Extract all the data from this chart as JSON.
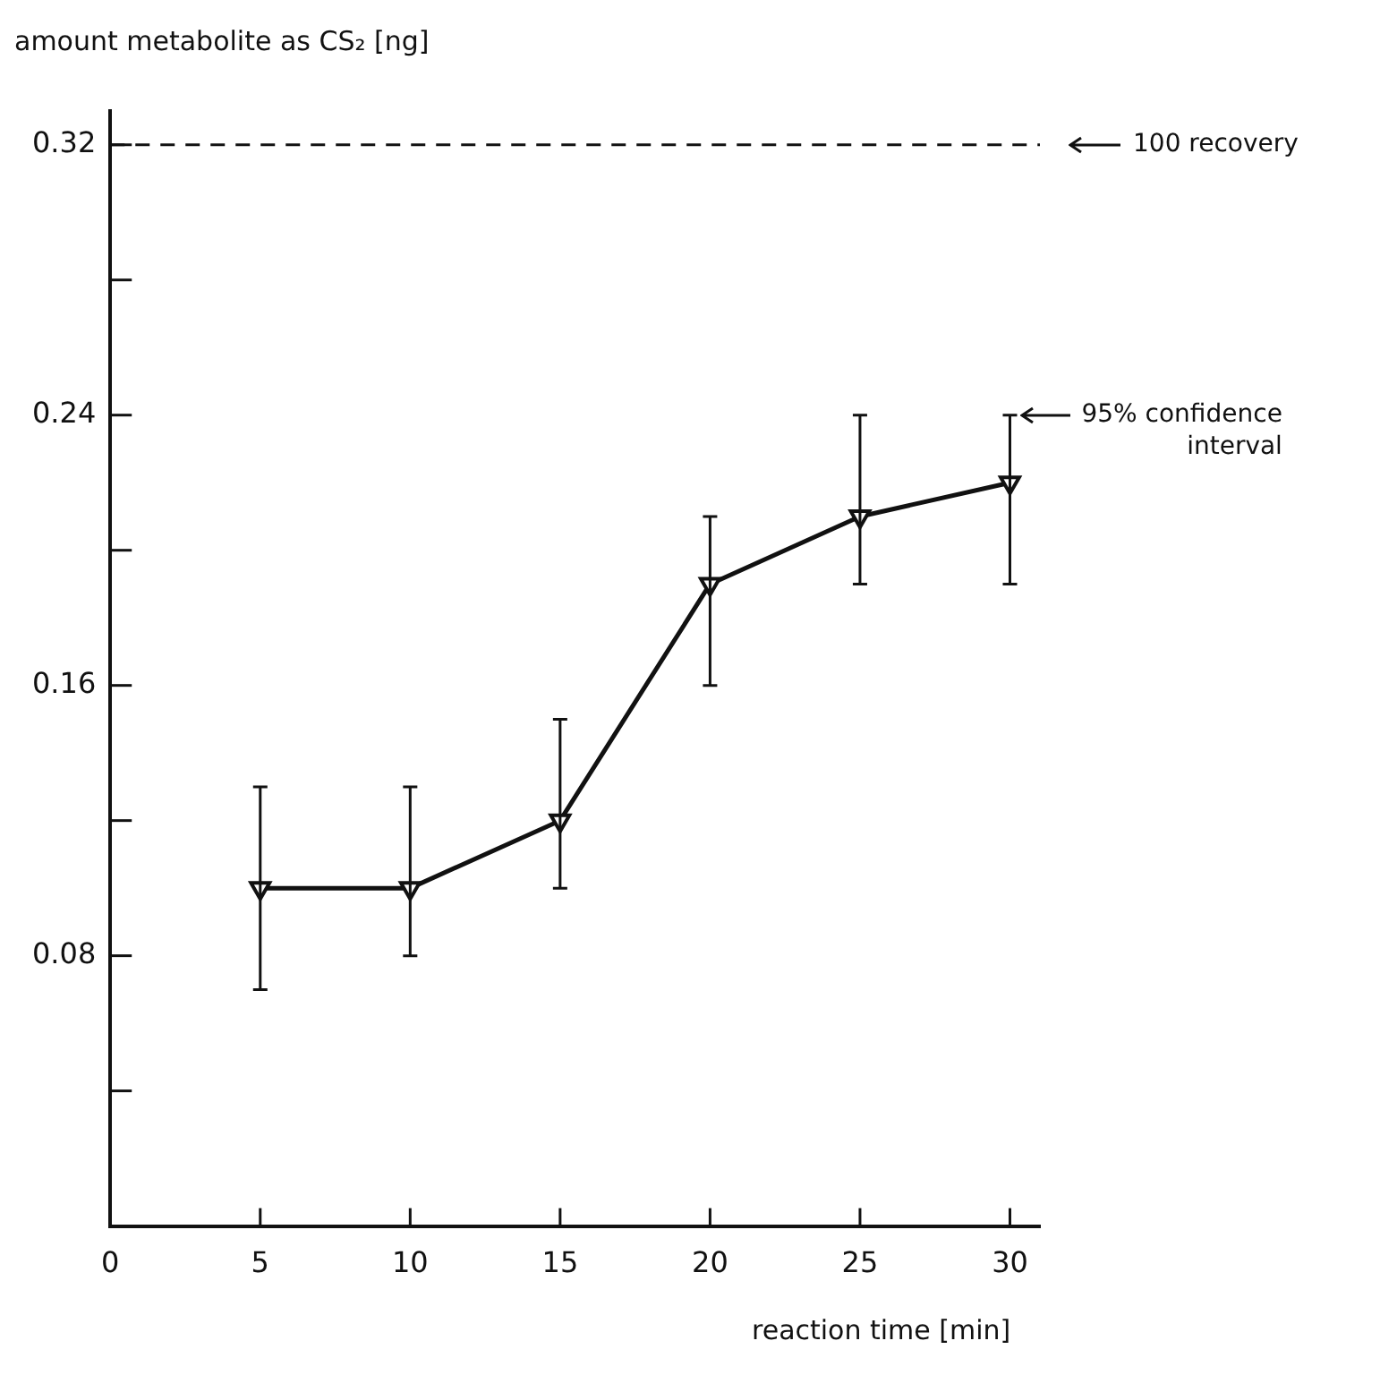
{
  "chart_data": {
    "type": "line",
    "xlabel": "reaction time [min]",
    "ylabel": "amount metabolite as CS₂ [ng]",
    "x": [
      5,
      10,
      15,
      20,
      25,
      30
    ],
    "series": [
      {
        "color": "#111111",
        "values": [
          0.1,
          0.1,
          0.12,
          0.19,
          0.21,
          0.22
        ],
        "errors": [
          [
            0.07,
            0.13
          ],
          [
            0.08,
            0.13
          ],
          [
            0.1,
            0.15
          ],
          [
            0.16,
            0.21
          ],
          [
            0.19,
            0.24
          ],
          [
            0.19,
            0.24
          ]
        ]
      }
    ],
    "xlim": [
      0,
      31
    ],
    "xticks": [
      0,
      5,
      10,
      15,
      20,
      25,
      30
    ],
    "ylim": [
      0,
      0.33
    ],
    "yticks": [
      {
        "value": 0.04,
        "label": null
      },
      0.08,
      {
        "value": 0.12,
        "label": null
      },
      0.16,
      {
        "value": 0.2,
        "label": null
      },
      0.24,
      {
        "value": 0.28,
        "label": null
      },
      0.32
    ],
    "ref_lines": [
      {
        "axis": "y",
        "value": 0.32,
        "label": "100 recovery",
        "line_style": "dashed"
      }
    ],
    "annotations": [
      {
        "text": "95% confidence interval",
        "x": 30,
        "y": 0.24
      }
    ],
    "marker": "triangle",
    "line_style": "solid",
    "legend": false,
    "grid": false
  }
}
